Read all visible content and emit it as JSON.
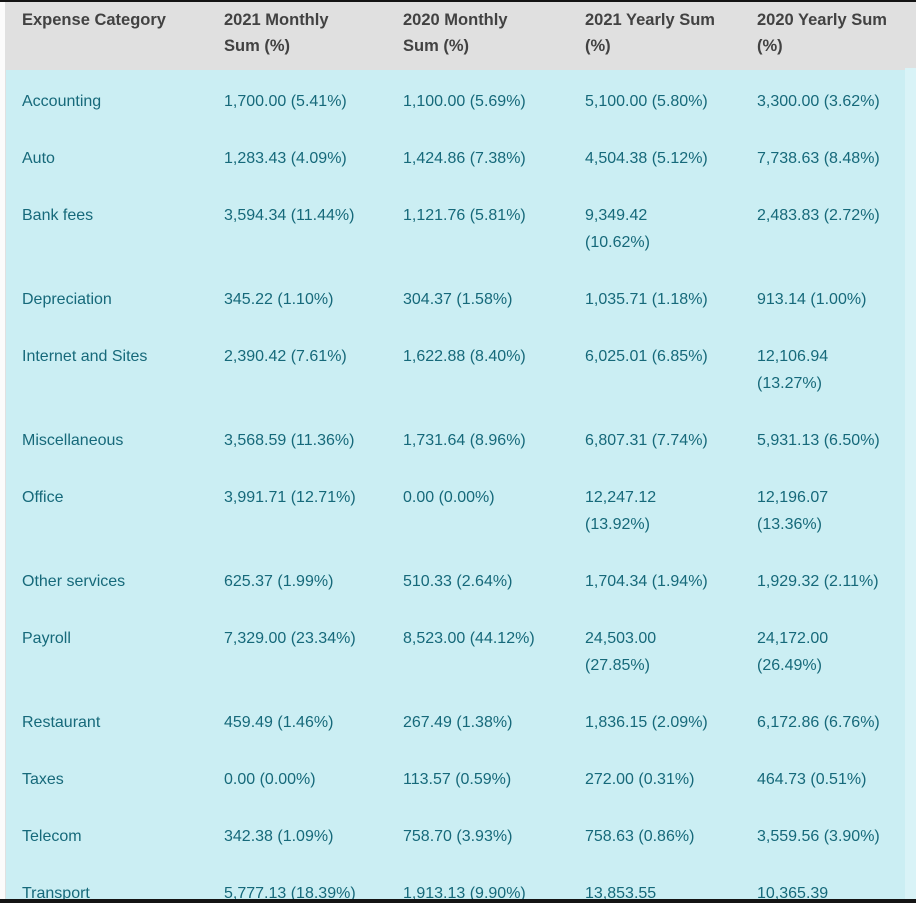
{
  "table": {
    "columns": [
      {
        "label": "Expense Category"
      },
      {
        "label": "2021 Monthly\nSum (%)"
      },
      {
        "label": "2020 Monthly\nSum (%)"
      },
      {
        "label": "2021 Yearly Sum\n(%)"
      },
      {
        "label": "2020 Yearly Sum\n(%)"
      }
    ],
    "rows": [
      {
        "category": "Accounting",
        "m2021": "1,700.00 (5.41%)",
        "m2020": "1,100.00 (5.69%)",
        "y2021": "5,100.00 (5.80%)",
        "y2020": "3,300.00 (3.62%)"
      },
      {
        "category": "Auto",
        "m2021": "1,283.43 (4.09%)",
        "m2020": "1,424.86 (7.38%)",
        "y2021": "4,504.38 (5.12%)",
        "y2020": "7,738.63 (8.48%)"
      },
      {
        "category": "Bank fees",
        "m2021": "3,594.34 (11.44%)",
        "m2020": "1,121.76 (5.81%)",
        "y2021": "9,349.42\n(10.62%)",
        "y2020": "2,483.83 (2.72%)"
      },
      {
        "category": "Depreciation",
        "m2021": "345.22 (1.10%)",
        "m2020": "304.37 (1.58%)",
        "y2021": "1,035.71 (1.18%)",
        "y2020": "913.14 (1.00%)"
      },
      {
        "category": "Internet and Sites",
        "m2021": "2,390.42 (7.61%)",
        "m2020": "1,622.88 (8.40%)",
        "y2021": "6,025.01 (6.85%)",
        "y2020": "12,106.94\n(13.27%)"
      },
      {
        "category": "Miscellaneous",
        "m2021": "3,568.59 (11.36%)",
        "m2020": "1,731.64 (8.96%)",
        "y2021": "6,807.31 (7.74%)",
        "y2020": "5,931.13 (6.50%)"
      },
      {
        "category": "Office",
        "m2021": "3,991.71 (12.71%)",
        "m2020": "0.00 (0.00%)",
        "y2021": "12,247.12\n(13.92%)",
        "y2020": "12,196.07\n(13.36%)"
      },
      {
        "category": "Other services",
        "m2021": "625.37 (1.99%)",
        "m2020": "510.33 (2.64%)",
        "y2021": "1,704.34 (1.94%)",
        "y2020": "1,929.32 (2.11%)"
      },
      {
        "category": "Payroll",
        "m2021": "7,329.00 (23.34%)",
        "m2020": "8,523.00 (44.12%)",
        "y2021": "24,503.00\n(27.85%)",
        "y2020": "24,172.00\n(26.49%)"
      },
      {
        "category": "Restaurant",
        "m2021": "459.49 (1.46%)",
        "m2020": "267.49 (1.38%)",
        "y2021": "1,836.15 (2.09%)",
        "y2020": "6,172.86 (6.76%)"
      },
      {
        "category": "Taxes",
        "m2021": "0.00 (0.00%)",
        "m2020": "113.57 (0.59%)",
        "y2021": "272.00 (0.31%)",
        "y2020": "464.73 (0.51%)"
      },
      {
        "category": "Telecom",
        "m2021": "342.38 (1.09%)",
        "m2020": "758.70 (3.93%)",
        "y2021": "758.63 (0.86%)",
        "y2020": "3,559.56 (3.90%)"
      },
      {
        "category": "Transport",
        "m2021": "5,777.13 (18.39%)",
        "m2020": "1,913.13 (9.90%)",
        "y2021": "13,853.55",
        "y2020": "10,365.39"
      }
    ]
  },
  "colors": {
    "header_bg": "#E0E0E0",
    "header_text": "#424242",
    "body_bg": "#CBEEF3",
    "body_text": "#16697A",
    "right_gutter": "#D9F3F7",
    "edge_dark": "#141414"
  }
}
